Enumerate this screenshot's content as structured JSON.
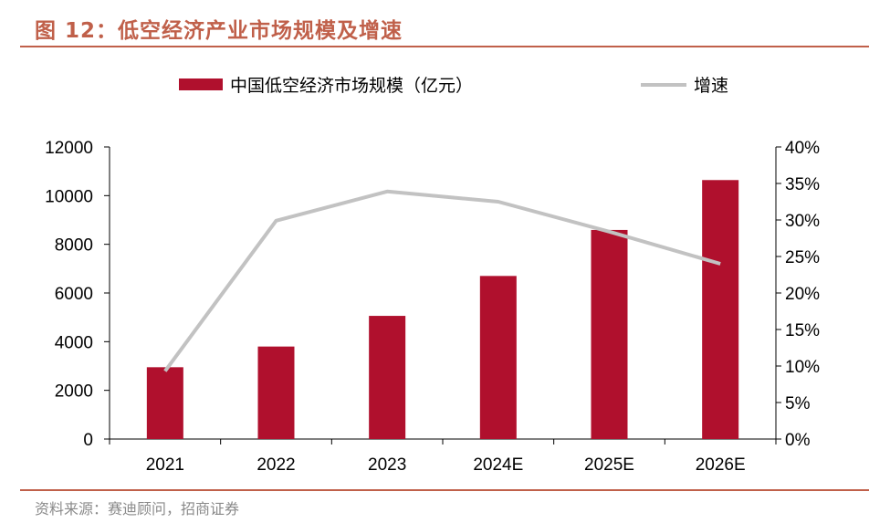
{
  "header": {
    "title": "图 12：低空经济产业市场规模及增速"
  },
  "footer": {
    "source": "资料来源：赛迪顾问，招商证券"
  },
  "colors": {
    "bar": "#b0102d",
    "line": "#c2c2c2",
    "accent": "#c0604a"
  },
  "chart_data": {
    "type": "bar+line",
    "categories": [
      "2021",
      "2022",
      "2023",
      "2024E",
      "2025E",
      "2026E"
    ],
    "series": [
      {
        "name": "中国低空经济市场规模（亿元）",
        "type": "bar",
        "axis": "left",
        "values": [
          2950,
          3800,
          5060,
          6700,
          8590,
          10640
        ]
      },
      {
        "name": "增速",
        "type": "line",
        "axis": "right",
        "unit": "%",
        "values": [
          9.3,
          29.9,
          33.9,
          32.5,
          28.4,
          24.0
        ]
      }
    ],
    "y_left": {
      "min": 0,
      "max": 12000,
      "ticks": [
        "0",
        "2000",
        "4000",
        "6000",
        "8000",
        "10000",
        "12000"
      ]
    },
    "y_right": {
      "min": 0,
      "max": 40,
      "ticks": [
        "0%",
        "5%",
        "10%",
        "15%",
        "20%",
        "25%",
        "30%",
        "35%",
        "40%"
      ]
    },
    "legend_position": "top"
  }
}
